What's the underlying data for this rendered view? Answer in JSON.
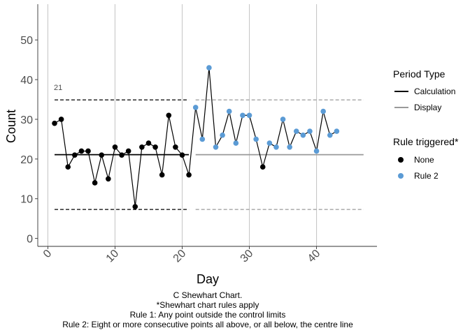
{
  "chart_data": {
    "type": "line",
    "title": "",
    "xlabel": "Day",
    "ylabel": "Count",
    "xlim": [
      -1.5,
      49
    ],
    "ylim": [
      -2,
      59
    ],
    "x_ticks": [
      0,
      10,
      20,
      30,
      40
    ],
    "y_ticks": [
      0,
      10,
      20,
      30,
      40,
      50
    ],
    "grid": "vertical only",
    "series": [
      {
        "name": "Count",
        "x": [
          1,
          2,
          3,
          4,
          5,
          6,
          7,
          8,
          9,
          10,
          11,
          12,
          13,
          14,
          15,
          16,
          17,
          18,
          19,
          20,
          21,
          22,
          23,
          24,
          25,
          26,
          27,
          28,
          29,
          30,
          31,
          32,
          33,
          34,
          35,
          36,
          37,
          38,
          39,
          40,
          41,
          42,
          43
        ],
        "values": [
          29,
          30,
          18,
          21,
          22,
          22,
          14,
          21,
          15,
          23,
          21,
          22,
          8,
          23,
          24,
          23,
          16,
          31,
          23,
          21,
          16,
          33,
          25,
          43,
          23,
          26,
          32,
          24,
          31,
          31,
          25,
          18,
          24,
          23,
          30,
          23,
          27,
          26,
          27,
          22,
          32,
          26,
          27
        ],
        "rule": [
          "None",
          "None",
          "None",
          "None",
          "None",
          "None",
          "None",
          "None",
          "None",
          "None",
          "None",
          "None",
          "None",
          "None",
          "None",
          "None",
          "None",
          "None",
          "None",
          "None",
          "None",
          "Rule 2",
          "Rule 2",
          "Rule 2",
          "Rule 2",
          "Rule 2",
          "Rule 2",
          "Rule 2",
          "Rule 2",
          "Rule 2",
          "Rule 2",
          "None",
          "Rule 2",
          "Rule 2",
          "Rule 2",
          "Rule 2",
          "Rule 2",
          "Rule 2",
          "Rule 2",
          "Rule 2",
          "Rule 2",
          "Rule 2",
          "Rule 2"
        ]
      }
    ],
    "control_limits": [
      {
        "period": "Calculation",
        "x_start": 1,
        "x_end": 21,
        "centre": 21.1,
        "ucl": 34.9,
        "lcl": 7.3,
        "color": "#000000"
      },
      {
        "period": "Display",
        "x_start": 22,
        "x_end": 47,
        "centre": 21.1,
        "ucl": 34.9,
        "lcl": 7.3,
        "color": "#999999"
      }
    ],
    "annotations": [
      {
        "text": "21",
        "x": 1,
        "y": 37.8
      }
    ],
    "legend": {
      "placement": "right",
      "period_title": "Period Type",
      "period_items": [
        {
          "label": "Calculation",
          "color": "#000000"
        },
        {
          "label": "Display",
          "color": "#999999"
        }
      ],
      "rule_title": "Rule triggered*",
      "rule_items": [
        {
          "label": "None",
          "color": "#000000"
        },
        {
          "label": "Rule 2",
          "color": "#5b9bd5"
        }
      ]
    },
    "caption": [
      "C Shewhart Chart.",
      "*Shewhart chart rules apply",
      "Rule 1: Any point outside the control limits",
      "Rule 2: Eight or more consecutive points all above, or all below, the centre line"
    ]
  },
  "colors": {
    "none_point": "#000000",
    "rule2_point": "#5b9bd5",
    "calc_line": "#000000",
    "display_line": "#999999",
    "grid": "#c8c8c8",
    "axis_text": "#4d4d4d"
  }
}
